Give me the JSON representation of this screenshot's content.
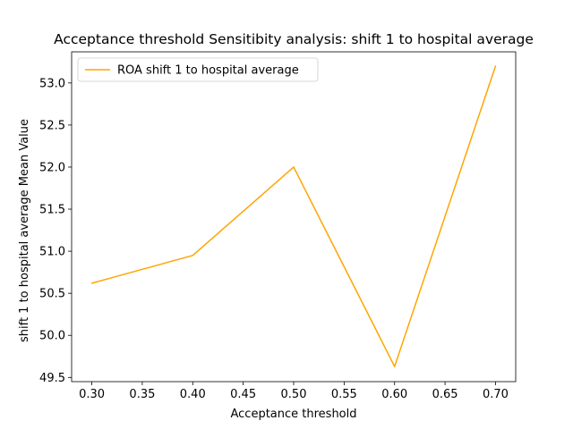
{
  "chart_data": {
    "type": "line",
    "title": "Acceptance threshold Sensitibity analysis: shift 1 to hospital average",
    "xlabel": "Acceptance threshold",
    "ylabel": "shift 1 to hospital average Mean Value",
    "xlim": [
      0.28,
      0.72
    ],
    "ylim": [
      49.45,
      53.37
    ],
    "x_ticks": [
      "0.30",
      "0.35",
      "0.40",
      "0.45",
      "0.50",
      "0.55",
      "0.60",
      "0.65",
      "0.70"
    ],
    "y_ticks": [
      "49.5",
      "50.0",
      "50.5",
      "51.0",
      "51.5",
      "52.0",
      "52.5",
      "53.0"
    ],
    "grid": false,
    "legend_position": "upper-left",
    "series": [
      {
        "name": "ROA shift 1 to hospital average",
        "color": "#FFA500",
        "x": [
          0.3,
          0.4,
          0.5,
          0.6,
          0.7
        ],
        "y": [
          50.62,
          50.95,
          52.0,
          49.63,
          53.2
        ]
      }
    ]
  }
}
